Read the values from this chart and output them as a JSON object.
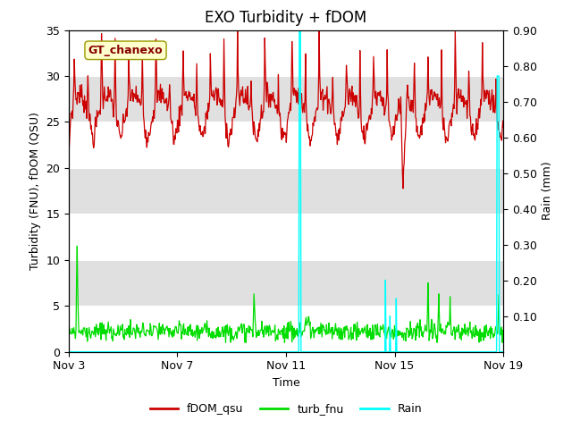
{
  "title": "EXO Turbidity + fDOM",
  "xlabel": "Time",
  "ylabel_left": "Turbidity (FNU), fDOM (QSU)",
  "ylabel_right": "Rain (mm)",
  "xlim_days": [
    0,
    16
  ],
  "ylim_left": [
    0,
    35
  ],
  "ylim_right": [
    0,
    0.9
  ],
  "yticks_left": [
    0,
    5,
    10,
    15,
    20,
    25,
    30,
    35
  ],
  "yticks_right": [
    0.1,
    0.2,
    0.3,
    0.4,
    0.5,
    0.6,
    0.7,
    0.8,
    0.9
  ],
  "xtick_labels": [
    "Nov 3",
    "Nov 7",
    "Nov 11",
    "Nov 15",
    "Nov 19"
  ],
  "xtick_positions": [
    0,
    4,
    8,
    12,
    16
  ],
  "annotation_label": "GT_chanexo",
  "fig_bg_color": "#ffffff",
  "plot_bg_color": "#ffffff",
  "stripe_color_dark": "#e0e0e0",
  "fdom_color": "#cc0000",
  "turb_color": "#00dd00",
  "rain_color": "#00ffff",
  "legend_entries": [
    "fDOM_qsu",
    "turb_fnu",
    "Rain"
  ],
  "legend_colors": [
    "#cc0000",
    "#00dd00",
    "#00ffff"
  ],
  "title_fontsize": 12,
  "axis_fontsize": 9,
  "tick_fontsize": 9,
  "annotation_fontsize": 9
}
